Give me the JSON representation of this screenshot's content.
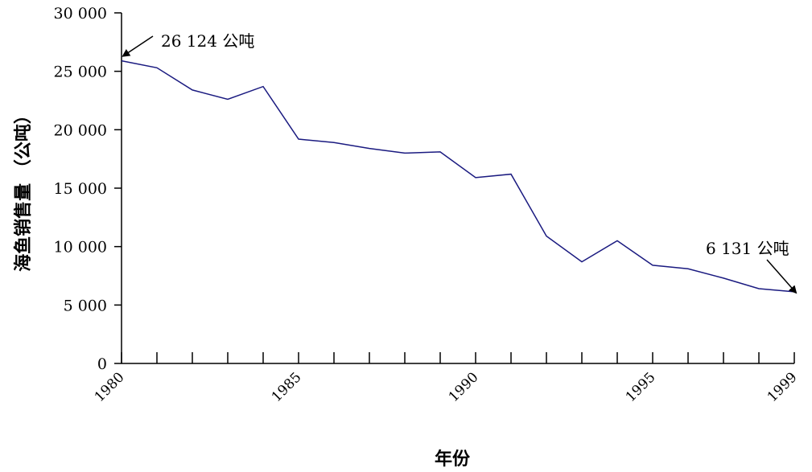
{
  "chart_data": {
    "type": "line",
    "title": "",
    "xlabel": "年份",
    "ylabel": "海鱼销售量 （公吨）",
    "xlim": [
      1980,
      1999
    ],
    "ylim": [
      0,
      30000
    ],
    "x_tick_labels": [
      "1980",
      "1985",
      "1990",
      "1995",
      "1999"
    ],
    "y_tick_labels": [
      "0",
      "5 000",
      "10 000",
      "15 000",
      "20 000",
      "25 000",
      "30 000"
    ],
    "y_ticks": [
      0,
      5000,
      10000,
      15000,
      20000,
      25000,
      30000
    ],
    "x_ticks": [
      1980,
      1985,
      1990,
      1995,
      1999
    ],
    "grid": false,
    "line_color": "#1a1a80",
    "series": [
      {
        "x": [
          1980,
          1981,
          1982,
          1983,
          1984,
          1985,
          1986,
          1987,
          1988,
          1989,
          1990,
          1991,
          1992,
          1993,
          1994,
          1995,
          1996,
          1997,
          1998,
          1999
        ],
        "values": [
          25900,
          25300,
          23400,
          22600,
          23700,
          19200,
          18900,
          18400,
          18000,
          18100,
          15900,
          16200,
          10900,
          8700,
          10500,
          8400,
          8100,
          7300,
          6400,
          6131
        ]
      }
    ],
    "annotations": [
      {
        "text": "26 124 公吨",
        "x": 1980,
        "y": 26124
      },
      {
        "text": "6 131 公吨",
        "x": 1999,
        "y": 6131
      }
    ]
  }
}
